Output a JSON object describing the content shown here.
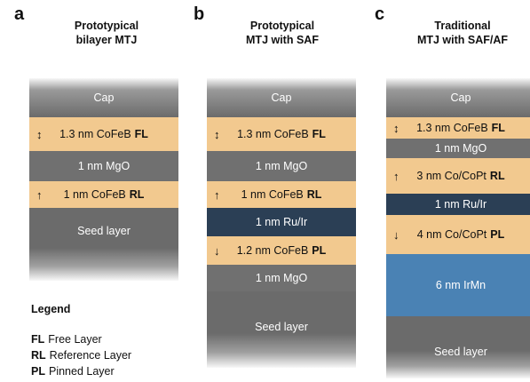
{
  "panels": [
    {
      "letter": "a",
      "title_line1": "Prototypical",
      "title_line2": "bilayer MTJ",
      "layers": [
        {
          "text": "Cap",
          "suffix": "",
          "arrow": ""
        },
        {
          "text": "1.3 nm CoFeB",
          "suffix": "FL",
          "arrow": "↕"
        },
        {
          "text": "1 nm MgO",
          "suffix": "",
          "arrow": ""
        },
        {
          "text": "1 nm CoFeB",
          "suffix": "RL",
          "arrow": "↑"
        },
        {
          "text": "Seed layer",
          "suffix": "",
          "arrow": ""
        }
      ]
    },
    {
      "letter": "b",
      "title_line1": "Prototypical",
      "title_line2": "MTJ with SAF",
      "layers": [
        {
          "text": "Cap",
          "suffix": "",
          "arrow": ""
        },
        {
          "text": "1.3 nm CoFeB",
          "suffix": "FL",
          "arrow": "↕"
        },
        {
          "text": "1 nm MgO",
          "suffix": "",
          "arrow": ""
        },
        {
          "text": "1 nm CoFeB",
          "suffix": "RL",
          "arrow": "↑"
        },
        {
          "text": "1 nm Ru/Ir",
          "suffix": "",
          "arrow": ""
        },
        {
          "text": "1.2 nm CoFeB",
          "suffix": "PL",
          "arrow": "↓"
        },
        {
          "text": "1 nm MgO",
          "suffix": "",
          "arrow": ""
        },
        {
          "text": "Seed layer",
          "suffix": "",
          "arrow": ""
        }
      ]
    },
    {
      "letter": "c",
      "title_line1": "Traditional",
      "title_line2": "MTJ with SAF/AF",
      "layers": [
        {
          "text": "Cap",
          "suffix": "",
          "arrow": ""
        },
        {
          "text": "1.3 nm CoFeB",
          "suffix": "FL",
          "arrow": "↕"
        },
        {
          "text": "1 nm MgO",
          "suffix": "",
          "arrow": ""
        },
        {
          "text": "3 nm Co/CoPt",
          "suffix": "RL",
          "arrow": "↑"
        },
        {
          "text": "1 nm Ru/Ir",
          "suffix": "",
          "arrow": ""
        },
        {
          "text": "4 nm Co/CoPt",
          "suffix": "PL",
          "arrow": "↓"
        },
        {
          "text": "6 nm IrMn",
          "suffix": "",
          "arrow": ""
        },
        {
          "text": "Seed layer",
          "suffix": "",
          "arrow": ""
        }
      ]
    }
  ],
  "legend": {
    "title": "Legend",
    "items": [
      {
        "abbr": "FL",
        "text": "Free Layer"
      },
      {
        "abbr": "RL",
        "text": "Reference Layer"
      },
      {
        "abbr": "PL",
        "text": "Pinned Layer"
      }
    ]
  }
}
